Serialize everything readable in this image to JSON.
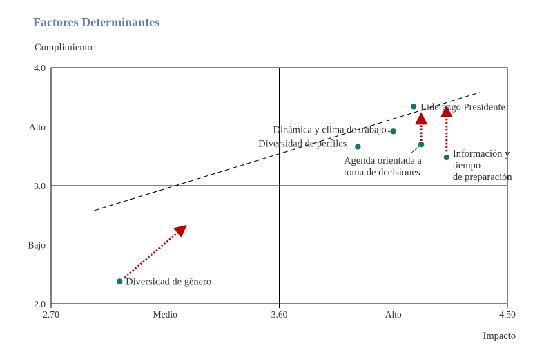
{
  "chart_data": {
    "type": "scatter",
    "title": "Factores Determinantes",
    "ylabel": "Cumplimiento",
    "xlabel": "Impacto",
    "xlim": [
      2.7,
      4.5
    ],
    "ylim": [
      2.0,
      4.0
    ],
    "x_ticks": [
      {
        "value": 2.7,
        "label": "2.70"
      },
      {
        "value": 3.6,
        "label": "3.60"
      },
      {
        "value": 4.5,
        "label": "4.50"
      }
    ],
    "x_category_ticks": [
      {
        "value": 3.15,
        "label": "Medio"
      },
      {
        "value": 4.05,
        "label": "Alto"
      }
    ],
    "y_ticks": [
      {
        "value": 2.0,
        "label": "2.0"
      },
      {
        "value": 3.0,
        "label": "3.0"
      },
      {
        "value": 4.0,
        "label": "4.0"
      }
    ],
    "y_category_ticks": [
      {
        "value": 2.5,
        "label": "Bajo"
      },
      {
        "value": 3.5,
        "label": "Alto"
      }
    ],
    "quadrant_dividers": {
      "x": 3.6,
      "y": 3.0
    },
    "points": [
      {
        "x": 4.13,
        "y": 3.67,
        "label": "Liderazgo Presidente"
      },
      {
        "x": 4.05,
        "y": 3.46,
        "label": "Dinámica y clima de trabajo"
      },
      {
        "x": 3.91,
        "y": 3.33,
        "label": "Diversidad de perfiles"
      },
      {
        "x": 4.16,
        "y": 3.35,
        "label": "Agenda orientada a toma de decisiones"
      },
      {
        "x": 4.26,
        "y": 3.24,
        "label": "Información y tiempo de preparación"
      },
      {
        "x": 2.97,
        "y": 2.19,
        "label": "Diversidad de género"
      }
    ],
    "trend_line": {
      "from": [
        2.87,
        2.79
      ],
      "to": [
        4.39,
        3.79
      ]
    },
    "arrows": [
      {
        "from": [
          2.99,
          2.22
        ],
        "to": [
          3.22,
          2.64
        ]
      },
      {
        "from": [
          4.16,
          3.38
        ],
        "to": [
          4.16,
          3.58
        ]
      },
      {
        "from": [
          4.26,
          3.29
        ],
        "to": [
          4.26,
          3.64
        ]
      }
    ],
    "colors": {
      "title": "#5b7fb5",
      "point": "#0e7672",
      "arrow": "#c00000",
      "line": "#000000"
    }
  }
}
